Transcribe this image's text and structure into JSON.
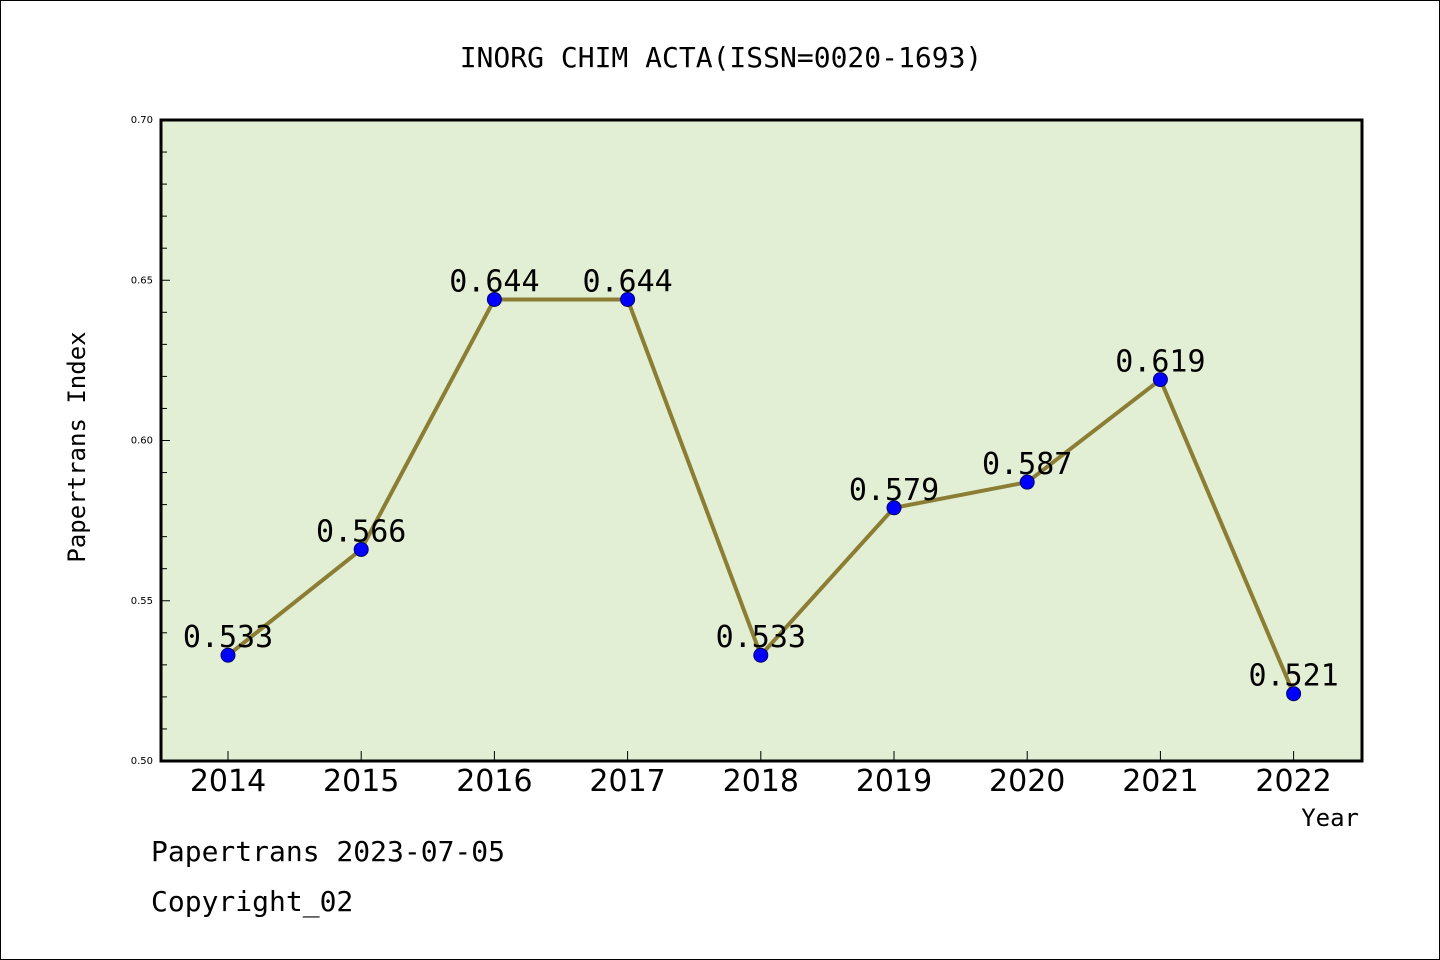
{
  "chart_data": {
    "type": "line",
    "title": "INORG CHIM ACTA(ISSN=0020-1693)",
    "xlabel": "Year",
    "ylabel": "Papertrans Index",
    "categories": [
      "2014",
      "2015",
      "2016",
      "2017",
      "2018",
      "2019",
      "2020",
      "2021",
      "2022"
    ],
    "series": [
      {
        "values": [
          0.533,
          0.566,
          0.644,
          0.644,
          0.533,
          0.579,
          0.587,
          0.619,
          0.521
        ],
        "data_labels": [
          "0.533",
          "0.566",
          "0.644",
          "0.644",
          "0.533",
          "0.579",
          "0.587",
          "0.619",
          "0.521"
        ]
      }
    ],
    "ylim": [
      0.5,
      0.7
    ],
    "yticks": [
      0.5,
      0.55,
      0.6,
      0.65,
      0.7
    ],
    "ytick_labels": [
      "0.50",
      "0.55",
      "0.60",
      "0.65",
      "0.70"
    ],
    "grid": false,
    "legend": "none",
    "colors": {
      "plot_background": "#e2efd4",
      "line": "#8b7d34",
      "marker": "#0000ff"
    }
  },
  "footer": {
    "source_line": "Papertrans 2023-07-05",
    "copyright": "Copyright_02"
  }
}
